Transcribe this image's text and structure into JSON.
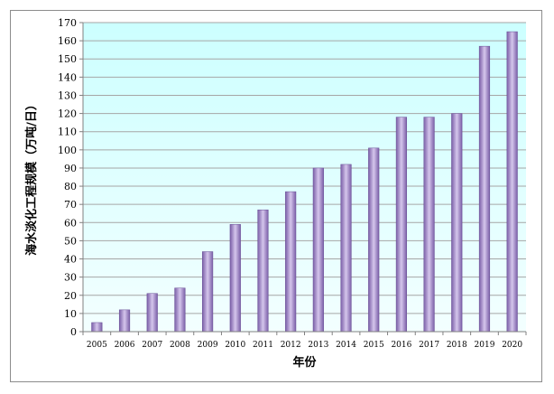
{
  "chart_data": {
    "type": "bar",
    "categories": [
      "2005",
      "2006",
      "2007",
      "2008",
      "2009",
      "2010",
      "2011",
      "2012",
      "2013",
      "2014",
      "2015",
      "2016",
      "2017",
      "2018",
      "2019",
      "2020"
    ],
    "values": [
      5,
      12,
      21,
      24,
      44,
      59,
      67,
      77,
      90,
      92,
      101,
      118,
      118,
      120,
      157,
      165
    ],
    "title": "",
    "xlabel": "年份",
    "ylabel": "海水淡化工程规模（万吨/日）",
    "ylim": [
      0,
      170
    ],
    "ytick_step": 10,
    "grid": true,
    "legend": "none",
    "colors": {
      "plot_background_top": "#ccffff",
      "plot_background_bottom": "#f3ffff",
      "bar_dark": "#7b5fa8",
      "bar_light": "#d5c6ec",
      "grid": "#a6a6a6",
      "axis": "#808080"
    }
  }
}
